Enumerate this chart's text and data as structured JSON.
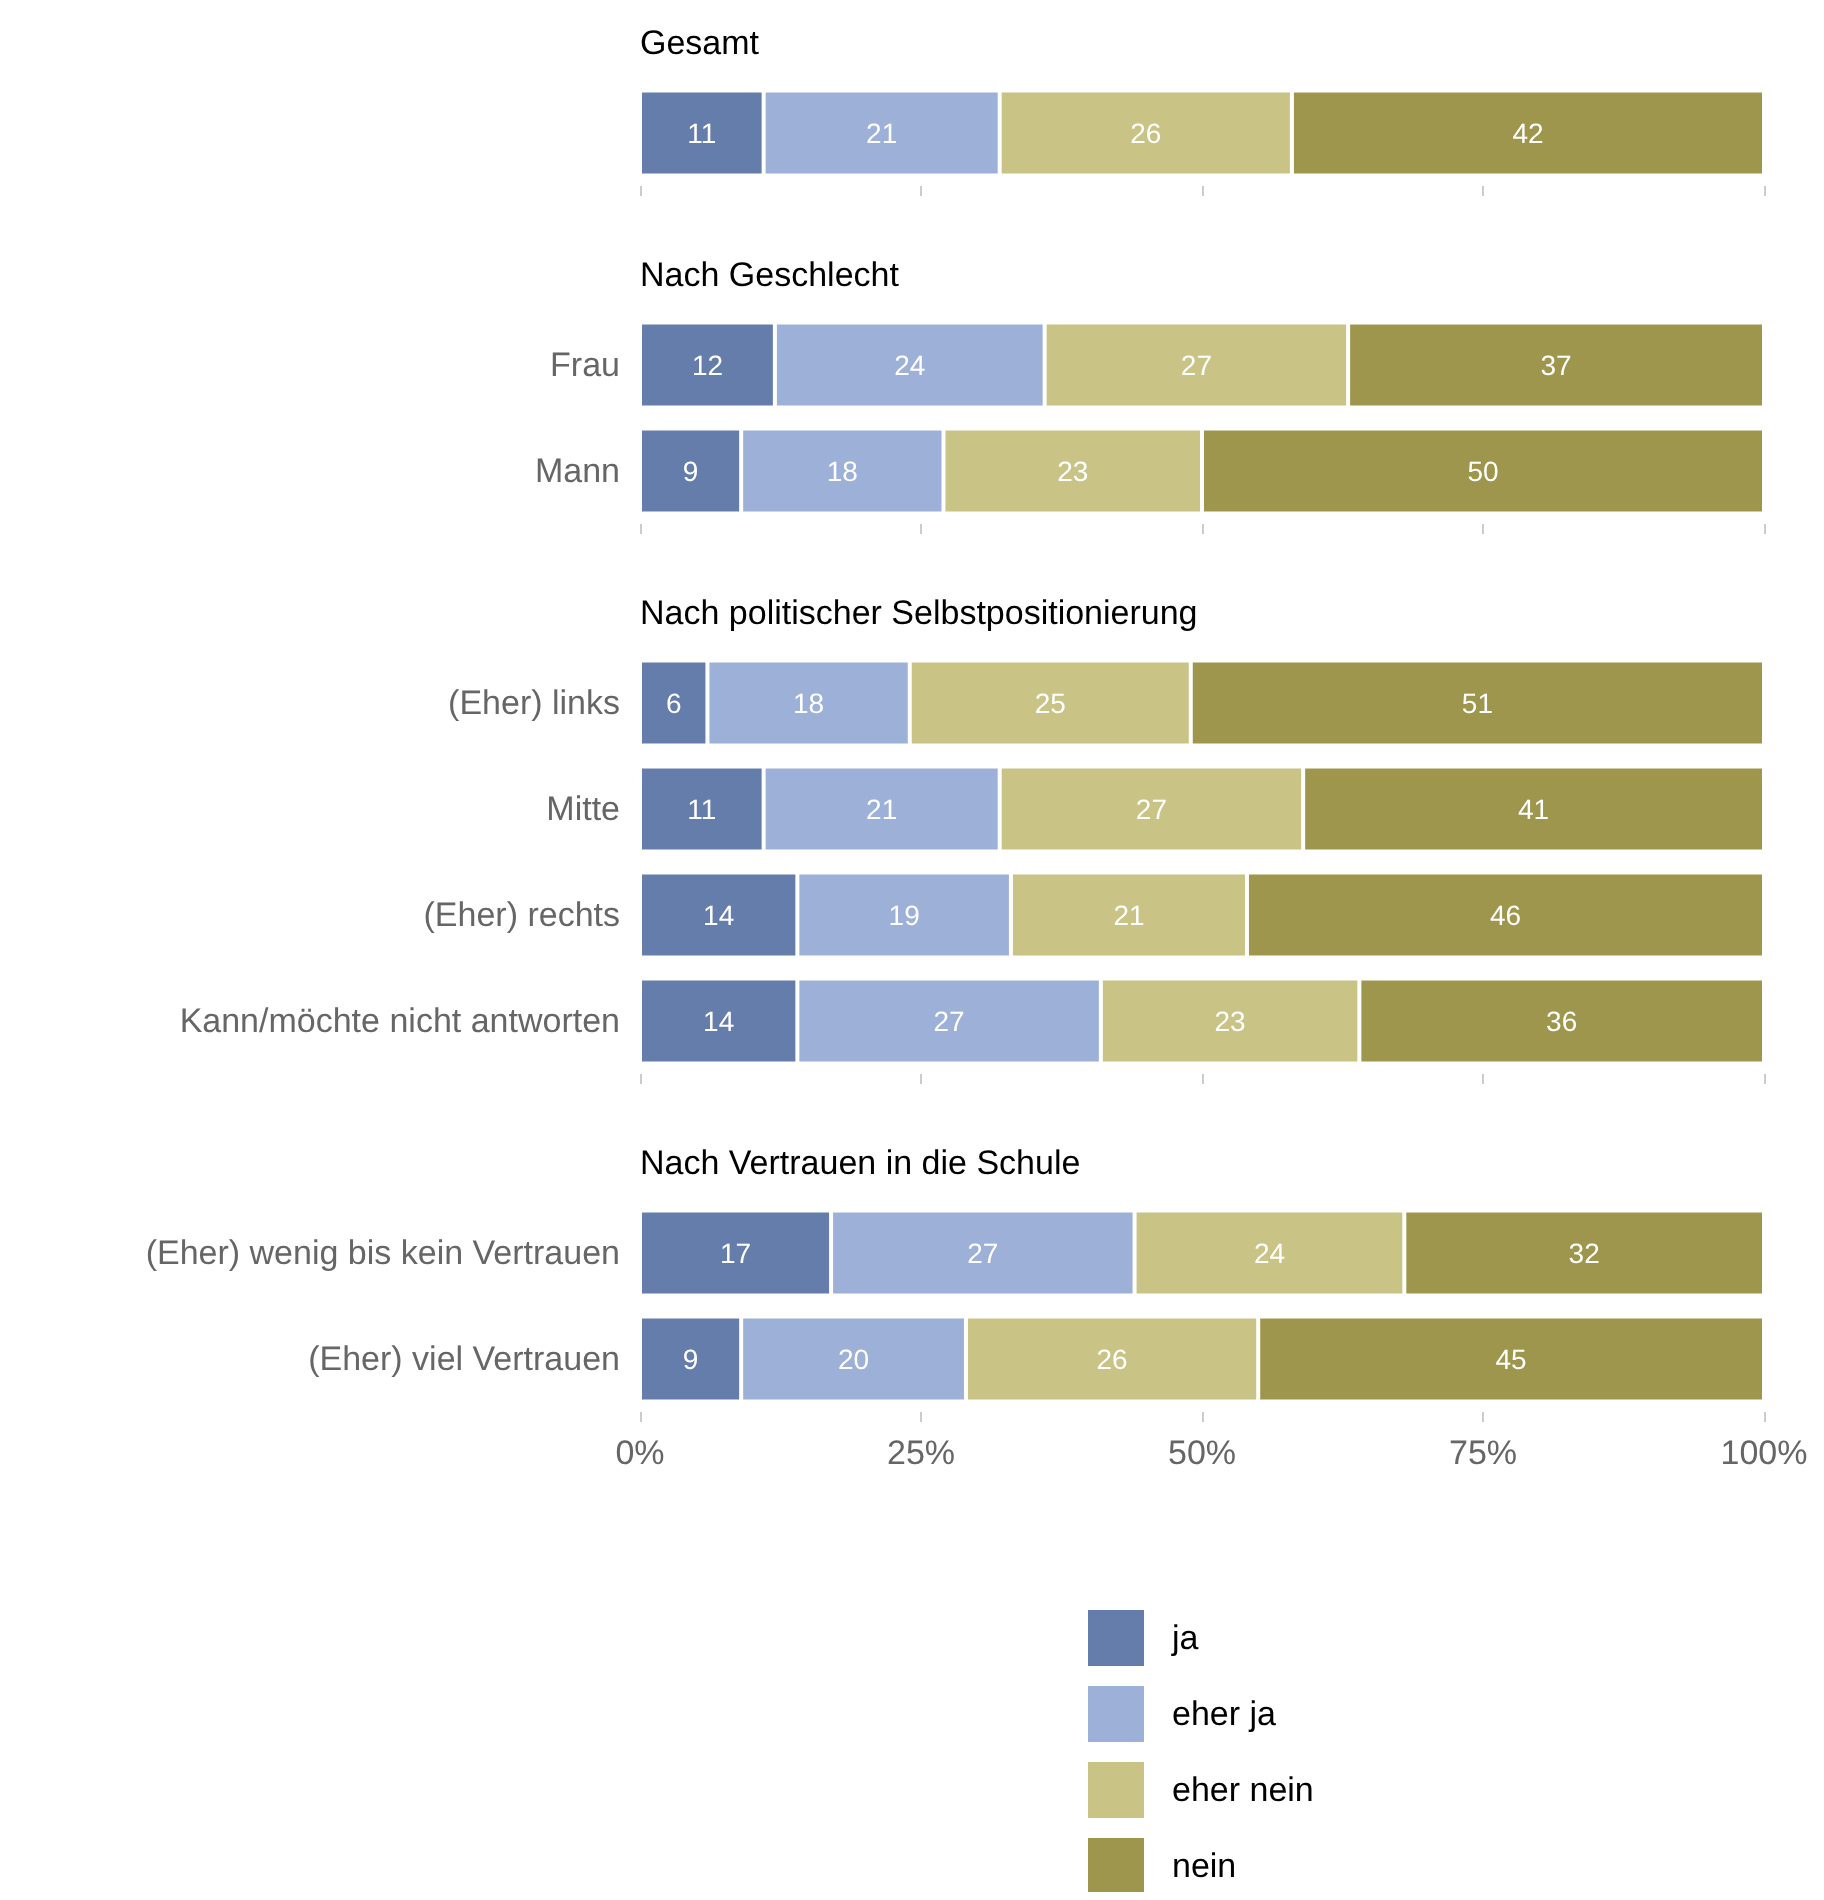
{
  "chart_data": [
    {
      "type": "bar",
      "orientation": "horizontal",
      "stacked": true,
      "title": "Gesamt",
      "categories": [
        null
      ],
      "tick_labels": false,
      "data_labels": true,
      "xlim": [
        0,
        100
      ],
      "xticks": [
        {
          "value": 0,
          "label": null
        },
        {
          "value": 25,
          "label": null
        },
        {
          "value": 50,
          "label": null
        },
        {
          "value": 75,
          "label": null
        },
        {
          "value": 100,
          "label": null
        }
      ],
      "series": [
        {
          "color": "#657dab",
          "values": [
            11
          ]
        },
        {
          "color": "#9cb0d8",
          "values": [
            21
          ]
        },
        {
          "color": "#c9c386",
          "values": [
            26
          ]
        },
        {
          "color": "#9e964d",
          "values": [
            42
          ]
        }
      ]
    },
    {
      "type": "bar",
      "orientation": "horizontal",
      "stacked": true,
      "title": "Nach Geschlecht",
      "categories": [
        "Frau",
        "Mann"
      ],
      "tick_labels": "y",
      "data_labels": true,
      "xlim": [
        0,
        100
      ],
      "xticks": [
        {
          "value": 0,
          "label": null
        },
        {
          "value": 25,
          "label": null
        },
        {
          "value": 50,
          "label": null
        },
        {
          "value": 75,
          "label": null
        },
        {
          "value": 100,
          "label": null
        }
      ],
      "series": [
        {
          "color": "#657dab",
          "values": [
            12,
            9
          ]
        },
        {
          "color": "#9cb0d8",
          "values": [
            24,
            18
          ]
        },
        {
          "color": "#c9c386",
          "values": [
            27,
            23
          ]
        },
        {
          "color": "#9e964d",
          "values": [
            37,
            50
          ]
        }
      ]
    },
    {
      "type": "bar",
      "orientation": "horizontal",
      "stacked": true,
      "title": "Nach politischer Selbstpositionierung",
      "categories": [
        "(Eher) links",
        "Mitte",
        "(Eher) rechts",
        "Kann/möchte nicht antworten"
      ],
      "tick_labels": "y",
      "data_labels": true,
      "xlim": [
        0,
        100
      ],
      "xticks": [
        {
          "value": 0,
          "label": null
        },
        {
          "value": 25,
          "label": null
        },
        {
          "value": 50,
          "label": null
        },
        {
          "value": 75,
          "label": null
        },
        {
          "value": 100,
          "label": null
        }
      ],
      "series": [
        {
          "color": "#657dab",
          "values": [
            6,
            11,
            14,
            14
          ]
        },
        {
          "color": "#9cb0d8",
          "values": [
            18,
            21,
            19,
            27
          ]
        },
        {
          "color": "#c9c386",
          "values": [
            25,
            27,
            21,
            23
          ]
        },
        {
          "color": "#9e964d",
          "values": [
            51,
            41,
            46,
            36
          ]
        }
      ]
    },
    {
      "type": "bar",
      "orientation": "horizontal",
      "stacked": true,
      "title": "Nach Vertrauen in die Schule",
      "categories": [
        "(Eher) wenig bis kein Vertrauen",
        "(Eher) viel Vertrauen"
      ],
      "data_labels": true,
      "legend": "bottom",
      "xlim": [
        0,
        100
      ],
      "xticks": [
        {
          "value": 0,
          "label": "0%"
        },
        {
          "value": 25,
          "label": "25%"
        },
        {
          "value": 50,
          "label": "50%"
        },
        {
          "value": 75,
          "label": "75%"
        },
        {
          "value": 100,
          "label": "100%"
        }
      ],
      "series": [
        {
          "name": "ja",
          "color": "#657dab",
          "values": [
            17,
            9
          ]
        },
        {
          "name": "eher ja",
          "color": "#9cb0d8",
          "values": [
            27,
            20
          ]
        },
        {
          "name": "eher nein",
          "color": "#c9c386",
          "values": [
            24,
            26
          ]
        },
        {
          "name": "nein",
          "color": "#9e964d",
          "values": [
            32,
            45
          ]
        }
      ]
    }
  ]
}
